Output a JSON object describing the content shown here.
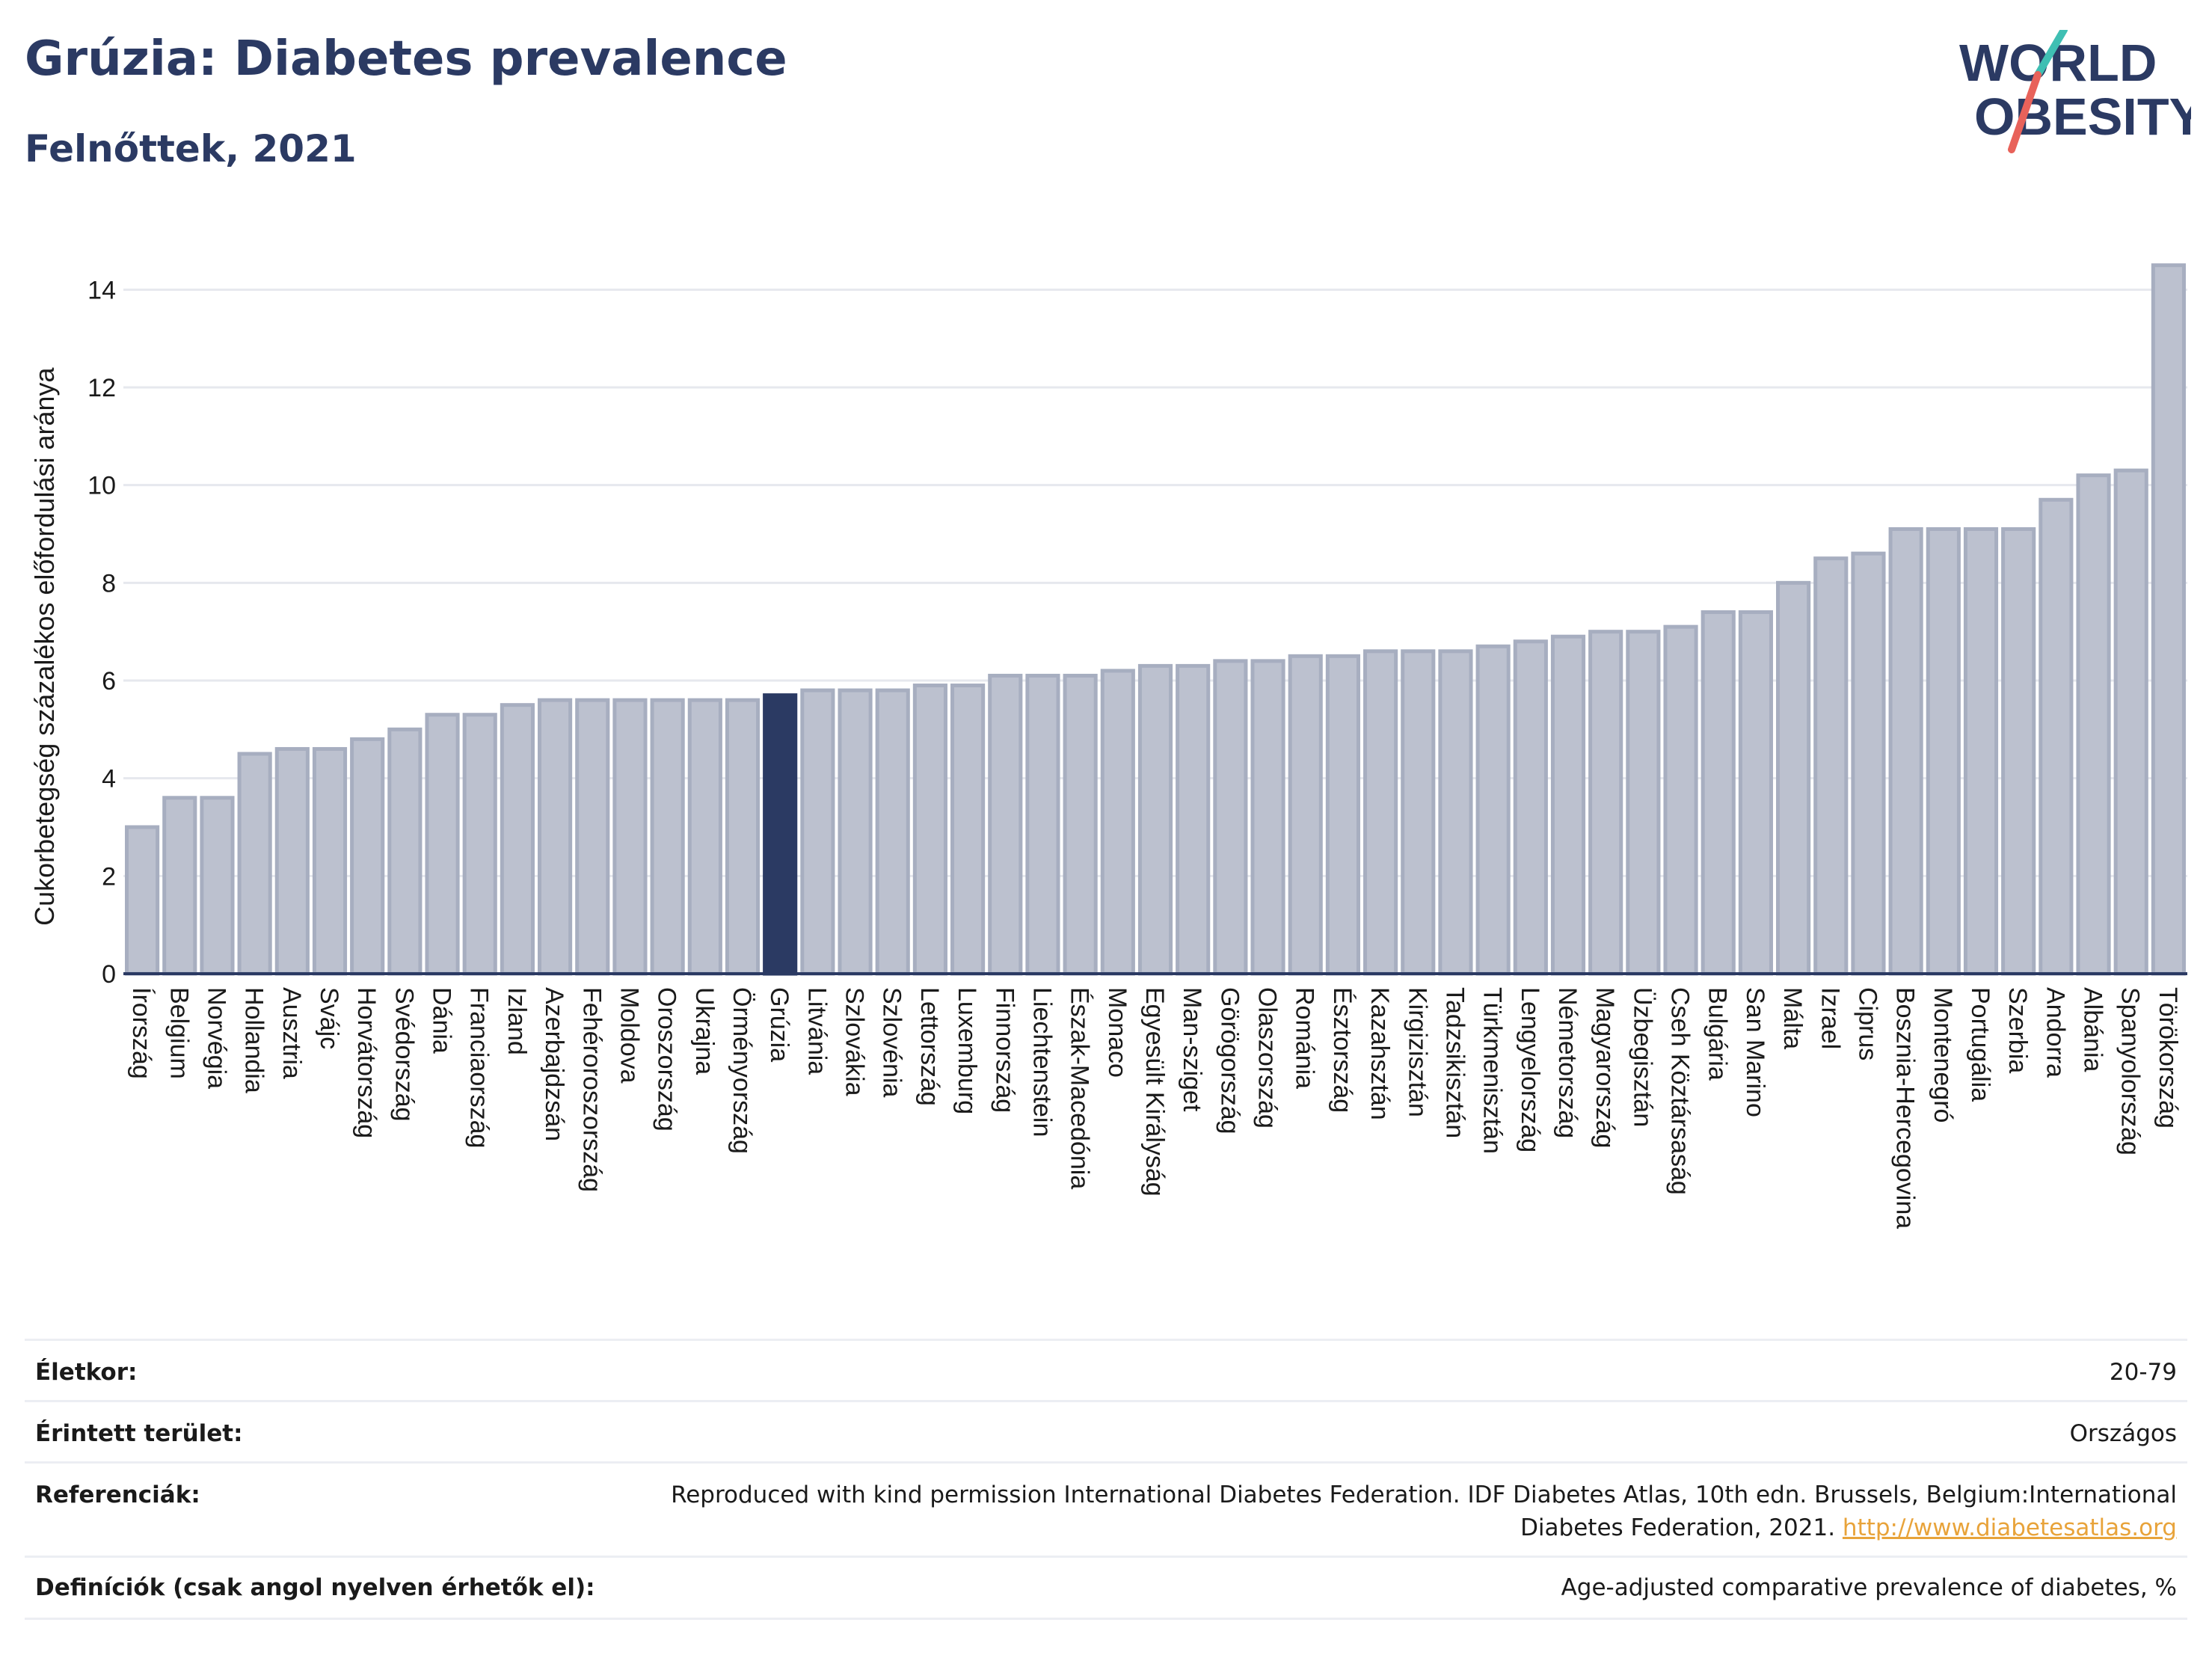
{
  "header": {
    "title": "Grúzia: Diabetes prevalence",
    "subtitle": "Felnőttek, 2021"
  },
  "logo": {
    "line1": "WORLD",
    "line2": "OBESITY"
  },
  "colors": {
    "highlight": "#2b3a63",
    "bar": "#bcc1cf",
    "bar_stroke": "#a7aec0",
    "accent_teal": "#3fbfb3",
    "accent_red": "#e8625a"
  },
  "chart_data": {
    "type": "bar",
    "ylabel": "Cukorbetegség százalékos előfordulási aránya",
    "ylim": [
      0,
      15
    ],
    "yticks": [
      0,
      2,
      4,
      6,
      8,
      10,
      12,
      14
    ],
    "grid": true,
    "highlight": "Grúzia",
    "categories": [
      "Írország",
      "Belgium",
      "Norvégia",
      "Hollandia",
      "Ausztria",
      "Svájc",
      "Horvátország",
      "Svédország",
      "Dánia",
      "Franciaország",
      "Izland",
      "Azerbajdzsán",
      "Fehéroroszország",
      "Moldova",
      "Oroszország",
      "Ukrajna",
      "Örményország",
      "Grúzia",
      "Litvánia",
      "Szlovákia",
      "Szlovénia",
      "Lettország",
      "Luxemburg",
      "Finnország",
      "Liechtenstein",
      "Észak-Macedónia",
      "Monaco",
      "Egyesült Királyság",
      "Man-sziget",
      "Görögország",
      "Olaszország",
      "Románia",
      "Észtország",
      "Kazahsztán",
      "Kirgizisztán",
      "Tadzsikisztán",
      "Türkmenisztán",
      "Lengyelország",
      "Németország",
      "Magyarország",
      "Üzbegisztán",
      "Cseh Köztársaság",
      "Bulgária",
      "San Marino",
      "Málta",
      "Izrael",
      "Ciprus",
      "Bosznia-Hercegovina",
      "Montenegró",
      "Portugália",
      "Szerbia",
      "Andorra",
      "Albánia",
      "Spanyolország",
      "Törökország"
    ],
    "values": [
      3.0,
      3.6,
      3.6,
      4.5,
      4.6,
      4.6,
      4.8,
      5.0,
      5.3,
      5.3,
      5.5,
      5.6,
      5.6,
      5.6,
      5.6,
      5.6,
      5.6,
      5.7,
      5.8,
      5.8,
      5.8,
      5.9,
      5.9,
      6.1,
      6.1,
      6.1,
      6.2,
      6.3,
      6.3,
      6.4,
      6.4,
      6.5,
      6.5,
      6.6,
      6.6,
      6.6,
      6.7,
      6.8,
      6.9,
      7.0,
      7.0,
      7.1,
      7.4,
      7.4,
      8.0,
      8.5,
      8.6,
      9.1,
      9.1,
      9.1,
      9.1,
      9.7,
      10.2,
      10.3,
      14.5
    ]
  },
  "meta": {
    "age_label": "Életkor:",
    "age_value": "20-79",
    "area_label": "Érintett terület:",
    "area_value": "Országos",
    "ref_label": "Referenciák:",
    "ref_line1": "Reproduced with kind permission International Diabetes Federation.  IDF Diabetes Atlas, 10th edn. Brussels, Belgium:International",
    "ref_line2": "Diabetes Federation, 2021.",
    "ref_link": "http://www.diabetesatlas.org",
    "def_label": "Definíciók (csak angol nyelven érhetők el):",
    "def_value": "Age-adjusted comparative prevalence of diabetes, %"
  }
}
